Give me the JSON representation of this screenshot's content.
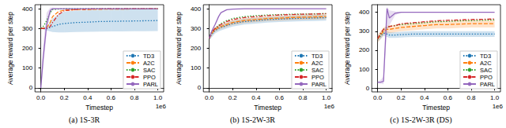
{
  "chart_data": [
    {
      "type": "line",
      "title": "(a) 1S-3R",
      "x_label": "Timestep",
      "y_label": "Average reward per step",
      "annotation": "1e6",
      "x": [
        0,
        0.02,
        0.05,
        0.08,
        0.1,
        0.15,
        0.2,
        0.3,
        0.4,
        0.5,
        0.6,
        0.7,
        0.8,
        0.9,
        1.0
      ],
      "xlim": [
        -0.05,
        1.05
      ],
      "xticks": [
        {
          "value": 0,
          "label": "0.0"
        },
        {
          "value": 0.2,
          "label": "0.2"
        },
        {
          "value": 0.4,
          "label": "0.4"
        },
        {
          "value": 0.6,
          "label": "0.6"
        },
        {
          "value": 0.8,
          "label": "0.8"
        },
        {
          "value": 1.0,
          "label": "1.0"
        }
      ],
      "ylim": [
        -20,
        420
      ],
      "yticks": [
        0,
        100,
        200,
        300,
        400
      ],
      "grid": false,
      "legend": "lower right",
      "series": [
        {
          "name": "TD3",
          "color": "#1f77b4",
          "line_style": "dotted",
          "values": [
            300,
            300,
            300,
            305,
            310,
            320,
            325,
            330,
            332,
            335,
            336,
            337,
            338,
            339,
            340
          ],
          "lower": [
            300,
            295,
            290,
            285,
            282,
            280,
            280,
            282,
            283,
            284,
            285,
            285,
            286,
            286,
            287
          ],
          "upper": [
            300,
            305,
            310,
            330,
            350,
            370,
            385,
            390,
            392,
            394,
            395,
            396,
            396,
            397,
            397
          ]
        },
        {
          "name": "A2C",
          "color": "#ff7f0e",
          "line_style": "dashed",
          "values": [
            300,
            300,
            305,
            330,
            360,
            385,
            392,
            395,
            396,
            397,
            398,
            398,
            399,
            399,
            400
          ]
        },
        {
          "name": "SAC",
          "color": "#2ca02c",
          "line_style": "dotted",
          "values": [
            300,
            310,
            340,
            380,
            395,
            398,
            399,
            400,
            400,
            400,
            400,
            400,
            400,
            400,
            400
          ]
        },
        {
          "name": "PPO",
          "color": "#d62728",
          "line_style": "dashdot",
          "values": [
            300,
            300,
            300,
            310,
            330,
            370,
            390,
            396,
            398,
            399,
            400,
            400,
            400,
            400,
            400
          ]
        },
        {
          "name": "PARL",
          "color": "#9467bd",
          "line_style": "solid",
          "values": [
            0,
            150,
            320,
            390,
            400,
            400,
            400,
            400,
            400,
            400,
            400,
            400,
            400,
            400,
            400
          ],
          "lower": [
            0,
            100,
            280,
            370,
            395,
            398,
            399,
            400,
            400,
            400,
            400,
            400,
            400,
            400,
            400
          ],
          "upper": [
            0,
            220,
            380,
            405,
            405,
            402,
            401,
            400,
            400,
            400,
            400,
            400,
            400,
            400,
            400
          ]
        }
      ]
    },
    {
      "type": "line",
      "title": "(b) 1S-2W-3R",
      "x_label": "Timestep",
      "y_label": "Average reward per step",
      "annotation": "1e6",
      "x": [
        0,
        0.02,
        0.05,
        0.08,
        0.1,
        0.15,
        0.2,
        0.3,
        0.4,
        0.5,
        0.6,
        0.7,
        0.8,
        0.9,
        1.0
      ],
      "xlim": [
        -0.05,
        1.05
      ],
      "xticks": [
        {
          "value": 0,
          "label": "0.0"
        },
        {
          "value": 0.2,
          "label": "0.2"
        },
        {
          "value": 0.4,
          "label": "0.4"
        },
        {
          "value": 0.6,
          "label": "0.6"
        },
        {
          "value": 0.8,
          "label": "0.8"
        },
        {
          "value": 1.0,
          "label": "1.0"
        }
      ],
      "ylim": [
        -20,
        420
      ],
      "yticks": [
        0,
        100,
        200,
        300,
        400
      ],
      "grid": false,
      "legend": "lower right",
      "series": [
        {
          "name": "TD3",
          "color": "#1f77b4",
          "line_style": "dotted",
          "values": [
            250,
            270,
            290,
            300,
            305,
            315,
            325,
            335,
            340,
            345,
            348,
            350,
            352,
            353,
            355
          ],
          "lower": [
            240,
            255,
            275,
            285,
            290,
            300,
            310,
            320,
            325,
            330,
            333,
            335,
            337,
            338,
            340
          ],
          "upper": [
            260,
            285,
            305,
            315,
            320,
            330,
            340,
            350,
            355,
            360,
            363,
            365,
            367,
            368,
            370
          ]
        },
        {
          "name": "A2C",
          "color": "#ff7f0e",
          "line_style": "dashed",
          "values": [
            250,
            275,
            295,
            305,
            310,
            320,
            330,
            340,
            345,
            350,
            352,
            355,
            357,
            358,
            360
          ],
          "lower": [
            240,
            263,
            283,
            293,
            298,
            308,
            318,
            328,
            333,
            338,
            340,
            343,
            345,
            346,
            348
          ],
          "upper": [
            260,
            287,
            307,
            317,
            322,
            332,
            342,
            352,
            357,
            362,
            364,
            367,
            369,
            370,
            372
          ]
        },
        {
          "name": "SAC",
          "color": "#2ca02c",
          "line_style": "dotted",
          "values": [
            250,
            280,
            300,
            315,
            325,
            340,
            350,
            360,
            365,
            368,
            370,
            372,
            373,
            374,
            375
          ]
        },
        {
          "name": "PPO",
          "color": "#d62728",
          "line_style": "dashdot",
          "values": [
            250,
            280,
            300,
            312,
            320,
            335,
            345,
            355,
            360,
            365,
            368,
            370,
            372,
            373,
            375
          ]
        },
        {
          "name": "PARL",
          "color": "#9467bd",
          "line_style": "solid",
          "values": [
            250,
            285,
            320,
            360,
            380,
            395,
            398,
            400,
            400,
            400,
            400,
            400,
            400,
            400,
            400
          ]
        }
      ]
    },
    {
      "type": "line",
      "title": "(c) 1S-2W-3R (DS)",
      "x_label": "Timestep",
      "y_label": "Average reward per step",
      "annotation": "1e6",
      "x": [
        0,
        0.02,
        0.05,
        0.08,
        0.1,
        0.15,
        0.2,
        0.3,
        0.4,
        0.5,
        0.6,
        0.7,
        0.8,
        0.9,
        1.0
      ],
      "xlim": [
        -0.05,
        1.05
      ],
      "xticks": [
        {
          "value": 0,
          "label": "0.0"
        },
        {
          "value": 0.2,
          "label": "0.2"
        },
        {
          "value": 0.4,
          "label": "0.4"
        },
        {
          "value": 0.6,
          "label": "0.6"
        },
        {
          "value": 0.8,
          "label": "0.8"
        },
        {
          "value": 1.0,
          "label": "1.0"
        }
      ],
      "ylim": [
        -20,
        440
      ],
      "yticks": [
        0,
        100,
        200,
        300,
        400
      ],
      "grid": false,
      "legend": "lower right",
      "series": [
        {
          "name": "TD3",
          "color": "#1f77b4",
          "line_style": "dotted",
          "values": [
            260,
            270,
            290,
            285,
            280,
            280,
            282,
            285,
            285,
            285,
            285,
            285,
            285,
            285,
            285
          ],
          "lower": [
            245,
            255,
            275,
            270,
            265,
            265,
            267,
            270,
            270,
            270,
            270,
            270,
            270,
            270,
            270
          ],
          "upper": [
            275,
            285,
            305,
            300,
            295,
            295,
            297,
            300,
            300,
            300,
            300,
            300,
            300,
            300,
            300
          ]
        },
        {
          "name": "A2C",
          "color": "#ff7f0e",
          "line_style": "dashed",
          "values": [
            260,
            275,
            300,
            310,
            310,
            315,
            320,
            325,
            330,
            335,
            335,
            338,
            340,
            340,
            340
          ],
          "lower": [
            240,
            255,
            280,
            290,
            290,
            295,
            300,
            305,
            310,
            315,
            315,
            318,
            320,
            320,
            320
          ],
          "upper": [
            280,
            295,
            320,
            330,
            330,
            335,
            340,
            345,
            350,
            355,
            355,
            358,
            360,
            360,
            360
          ]
        },
        {
          "name": "SAC",
          "color": "#2ca02c",
          "line_style": "dotted",
          "values": [
            260,
            280,
            310,
            320,
            325,
            330,
            335,
            340,
            345,
            350,
            352,
            355,
            356,
            358,
            360
          ]
        },
        {
          "name": "PPO",
          "color": "#d62728",
          "line_style": "dashdot",
          "values": [
            260,
            285,
            310,
            320,
            325,
            330,
            340,
            345,
            350,
            355,
            358,
            360,
            362,
            363,
            365
          ]
        },
        {
          "name": "PARL",
          "color": "#9467bd",
          "line_style": "solid",
          "values": [
            30,
            30,
            35,
            420,
            370,
            395,
            400,
            400,
            400,
            400,
            400,
            400,
            400,
            400,
            400
          ],
          "lower": [
            30,
            25,
            20,
            300,
            330,
            385,
            398,
            400,
            400,
            400,
            400,
            400,
            400,
            400,
            400
          ],
          "upper": [
            35,
            40,
            60,
            430,
            410,
            405,
            402,
            400,
            400,
            400,
            400,
            400,
            400,
            400,
            400
          ]
        }
      ]
    }
  ]
}
